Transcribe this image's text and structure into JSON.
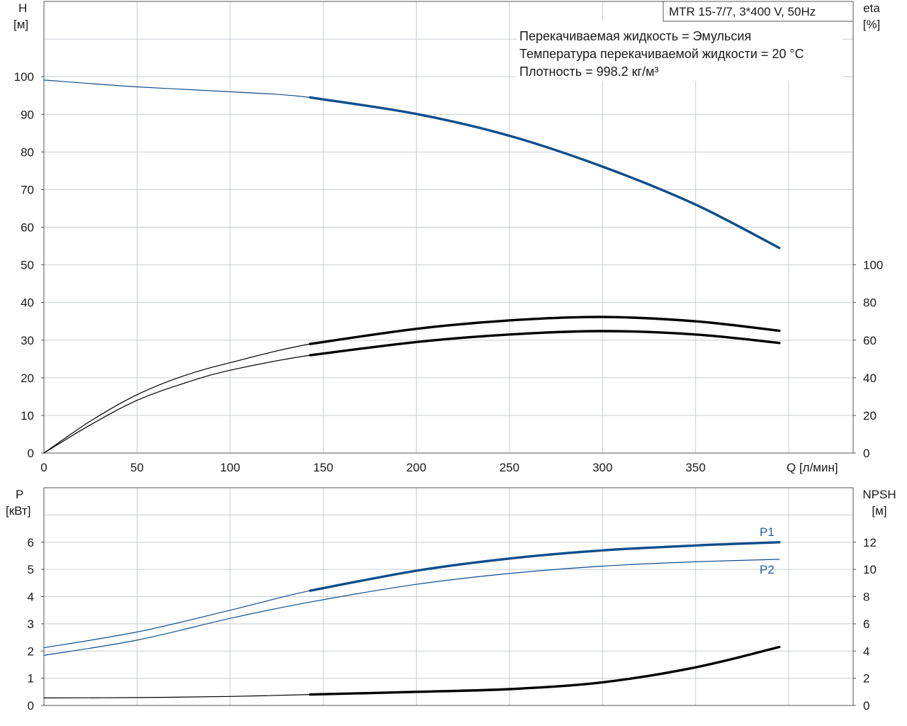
{
  "title_box": "MTR 15-7/7, 3*400 V, 50Hz",
  "notes": [
    "Перекачиваемая жидкость = Эмульсия",
    "Температура перекачиваемой жидкости = 20 °C",
    "Плотность = 998.2 кг/м³"
  ],
  "colors": {
    "blue": "#0e4d8a",
    "black": "#000000",
    "grid": "#c8cdd2",
    "label_blue": "#1f5fa8"
  },
  "chart_data": [
    {
      "type": "line",
      "name": "top",
      "xlabel": "Q [л/мин]",
      "ylabel_left": [
        "H",
        "[м]"
      ],
      "ylabel_right": [
        "eta",
        "[%]"
      ],
      "xlim": [
        0,
        420
      ],
      "ylim_left": [
        0,
        120
      ],
      "ylim_right": [
        0,
        240
      ],
      "x_ticks": [
        "0",
        "50",
        "100",
        "150",
        "200",
        "250",
        "300",
        "350"
      ],
      "y_ticks_left": [
        "0",
        "10",
        "20",
        "30",
        "40",
        "50",
        "60",
        "70",
        "80",
        "90",
        "100"
      ],
      "y_ticks_right": [
        "0",
        "20",
        "40",
        "60",
        "80",
        "100"
      ],
      "grid": true,
      "series": [
        {
          "key": "H",
          "axis": "left",
          "color": "#0e4d8a",
          "thick_from": 143,
          "x": [
            0,
            50,
            100,
            143,
            200,
            250,
            300,
            350,
            395
          ],
          "y": [
            99.1,
            97.3,
            96.0,
            94.5,
            90.1,
            84.3,
            76.1,
            66.0,
            54.5
          ]
        },
        {
          "key": "eta_upper",
          "axis": "right",
          "color": "#000000",
          "thick_from": 143,
          "x": [
            0,
            25,
            50,
            75,
            100,
            143,
            200,
            250,
            300,
            350,
            395
          ],
          "y": [
            0,
            17,
            31,
            41,
            48,
            58,
            66,
            70.5,
            72.3,
            70.0,
            65.0
          ]
        },
        {
          "key": "eta_lower",
          "axis": "right",
          "color": "#000000",
          "thick_from": 143,
          "x": [
            0,
            25,
            50,
            75,
            100,
            143,
            200,
            250,
            300,
            350,
            395
          ],
          "y": [
            0,
            15,
            28,
            37,
            44,
            52,
            59,
            63,
            64.8,
            63.0,
            58.5
          ]
        }
      ]
    },
    {
      "type": "line",
      "name": "bottom",
      "ylabel_left": [
        "P",
        "[кВт]"
      ],
      "ylabel_right": [
        "NPSH",
        "[м]"
      ],
      "xlim": [
        0,
        420
      ],
      "ylim_left": [
        0,
        8
      ],
      "ylim_right": [
        0,
        16
      ],
      "y_ticks_left": [
        "0",
        "1",
        "2",
        "3",
        "4",
        "5",
        "6"
      ],
      "y_ticks_right": [
        "0",
        "2",
        "4",
        "6",
        "8",
        "10",
        "12"
      ],
      "grid": true,
      "series": [
        {
          "key": "P1",
          "name": "P1",
          "axis": "left",
          "color": "#0e4d8a",
          "thick_from": 143,
          "x": [
            0,
            50,
            100,
            143,
            200,
            250,
            300,
            350,
            395
          ],
          "y": [
            2.12,
            2.7,
            3.5,
            4.22,
            4.95,
            5.4,
            5.7,
            5.88,
            6.0
          ]
        },
        {
          "key": "P2",
          "name": "P2",
          "axis": "left",
          "color": "#0e4d8a",
          "thick_from": 999,
          "x": [
            0,
            50,
            100,
            143,
            200,
            250,
            300,
            350,
            395
          ],
          "y": [
            1.84,
            2.4,
            3.2,
            3.8,
            4.45,
            4.85,
            5.12,
            5.28,
            5.37
          ]
        },
        {
          "key": "NPSH",
          "axis": "right",
          "color": "#000000",
          "thick_from": 143,
          "x": [
            0,
            50,
            100,
            143,
            200,
            250,
            300,
            350,
            395
          ],
          "y": [
            0.55,
            0.58,
            0.66,
            0.8,
            1.0,
            1.2,
            1.7,
            2.8,
            4.3
          ]
        }
      ]
    }
  ]
}
